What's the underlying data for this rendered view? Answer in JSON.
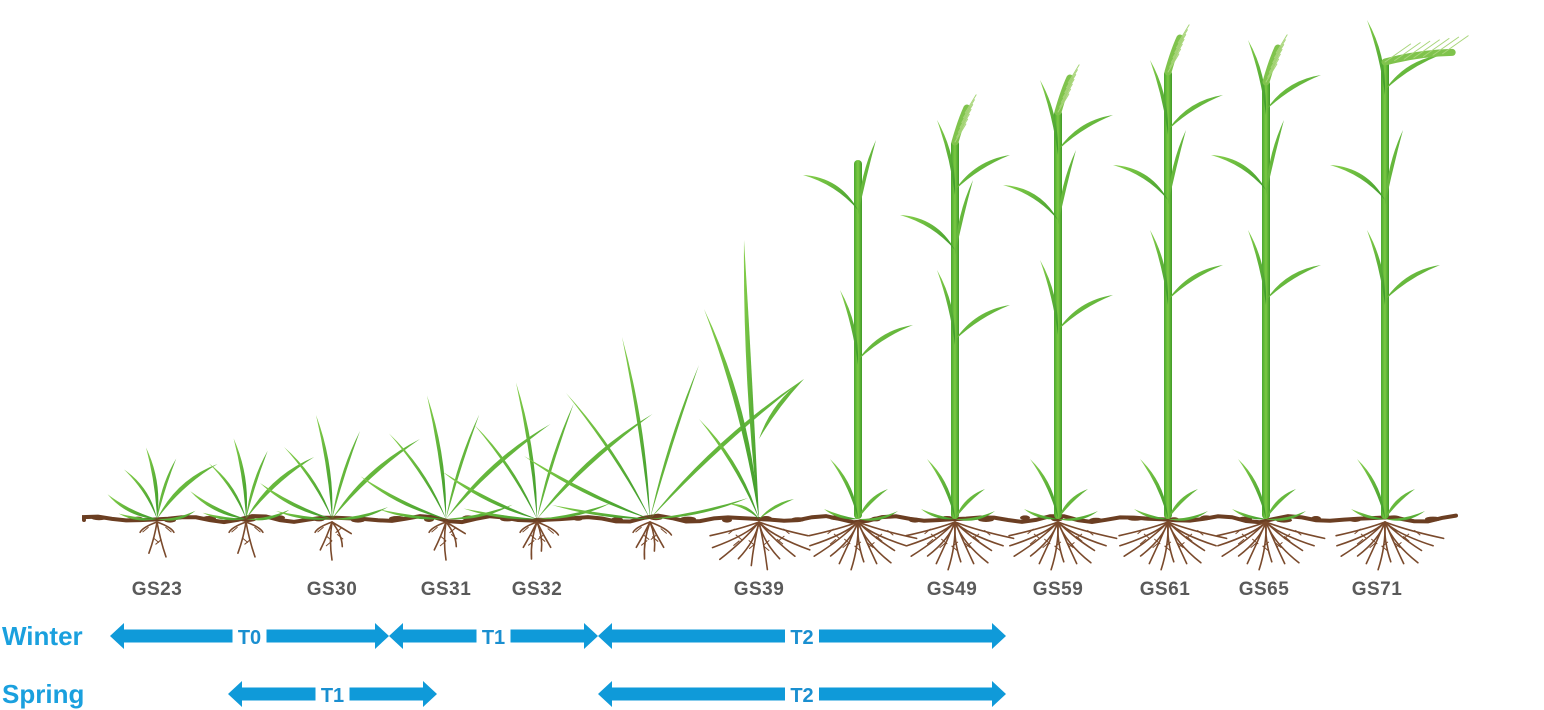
{
  "growth_stages": [
    "GS23",
    "GS30",
    "GS31",
    "GS32",
    "GS39",
    "GS49",
    "GS59",
    "GS61",
    "GS65",
    "GS71"
  ],
  "rows": [
    {
      "label": "Winter",
      "timings": [
        {
          "label": "T0",
          "from": "GS23",
          "to": "GS30"
        },
        {
          "label": "T1",
          "from": "GS30",
          "to": "GS32"
        },
        {
          "label": "T2",
          "from": "GS32",
          "to": "GS49"
        }
      ]
    },
    {
      "label": "Spring",
      "timings": [
        {
          "label": "T1",
          "from": "GS30",
          "to": "GS31"
        },
        {
          "label": "T2",
          "from": "GS32",
          "to": "GS49"
        }
      ]
    }
  ],
  "colors": {
    "arrow": "#0f9ad9",
    "row_label": "#1aa0de",
    "stage_label": "#5a5a5a",
    "soil": "#6b3e22",
    "root": "#7a4a2c",
    "leaf": "#6cbf3a",
    "leaf_dark": "#3f9b2c",
    "ear": "#a8d57a"
  }
}
